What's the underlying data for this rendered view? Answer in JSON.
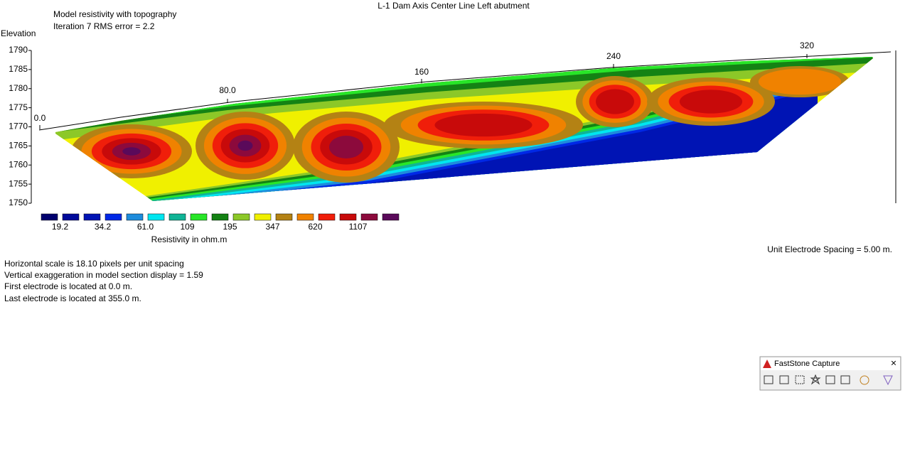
{
  "window": {
    "title": "L-1 Dam Axis Center Line Left abutment"
  },
  "section": {
    "subtitle": [
      "Model resistivity with topography",
      "Iteration 7 RMS error = 2.2"
    ],
    "y_axis_label": "Elevation",
    "y_ticks": [
      "1790",
      "1785",
      "1780",
      "1775",
      "1770",
      "1765",
      "1760",
      "1755",
      "1750"
    ],
    "x_ticks": [
      "0.0",
      "80.0",
      "160",
      "240",
      "320"
    ]
  },
  "legend": {
    "colors": [
      "#00006e",
      "#000a9a",
      "#0014b4",
      "#0028e6",
      "#1e8cdc",
      "#00e6f0",
      "#10b496",
      "#28e628",
      "#148214",
      "#8cc828",
      "#f0f000",
      "#b48214",
      "#f08200",
      "#f01e0a",
      "#c80a0a",
      "#8c0a3c",
      "#5a0a5a"
    ],
    "labels": [
      "19.2",
      "34.2",
      "61.0",
      "109",
      "195",
      "347",
      "620",
      "1107"
    ],
    "title": "Resistivity in ohm.m"
  },
  "notes": [
    "Horizontal scale is 18.10 pixels per unit spacing",
    "Vertical exaggeration in model section display = 1.59",
    "First electrode is located at 0.0  m.",
    "Last electrode is located at 355.0 m."
  ],
  "spacing_note": "Unit Electrode Spacing = 5.00 m.",
  "toolbar": {
    "title": "FastStone Capture",
    "close": "×"
  }
}
